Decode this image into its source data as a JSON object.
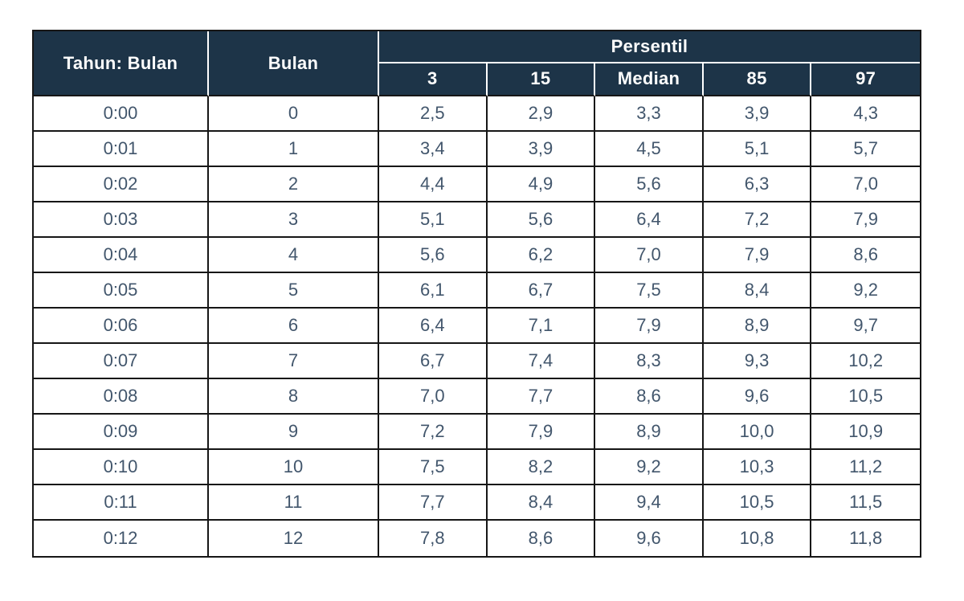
{
  "table": {
    "headers": {
      "year_month": "Tahun: Bulan",
      "month": "Bulan",
      "percentile_group": "Persentil",
      "percentiles": [
        "3",
        "15",
        "Median",
        "85",
        "97"
      ]
    },
    "rows": [
      {
        "year_month": "0:00",
        "month": "0",
        "values": [
          "2,5",
          "2,9",
          "3,3",
          "3,9",
          "4,3"
        ]
      },
      {
        "year_month": "0:01",
        "month": "1",
        "values": [
          "3,4",
          "3,9",
          "4,5",
          "5,1",
          "5,7"
        ]
      },
      {
        "year_month": "0:02",
        "month": "2",
        "values": [
          "4,4",
          "4,9",
          "5,6",
          "6,3",
          "7,0"
        ]
      },
      {
        "year_month": "0:03",
        "month": "3",
        "values": [
          "5,1",
          "5,6",
          "6,4",
          "7,2",
          "7,9"
        ]
      },
      {
        "year_month": "0:04",
        "month": "4",
        "values": [
          "5,6",
          "6,2",
          "7,0",
          "7,9",
          "8,6"
        ]
      },
      {
        "year_month": "0:05",
        "month": "5",
        "values": [
          "6,1",
          "6,7",
          "7,5",
          "8,4",
          "9,2"
        ]
      },
      {
        "year_month": "0:06",
        "month": "6",
        "values": [
          "6,4",
          "7,1",
          "7,9",
          "8,9",
          "9,7"
        ]
      },
      {
        "year_month": "0:07",
        "month": "7",
        "values": [
          "6,7",
          "7,4",
          "8,3",
          "9,3",
          "10,2"
        ]
      },
      {
        "year_month": "0:08",
        "month": "8",
        "values": [
          "7,0",
          "7,7",
          "8,6",
          "9,6",
          "10,5"
        ]
      },
      {
        "year_month": "0:09",
        "month": "9",
        "values": [
          "7,2",
          "7,9",
          "8,9",
          "10,0",
          "10,9"
        ]
      },
      {
        "year_month": "0:10",
        "month": "10",
        "values": [
          "7,5",
          "8,2",
          "9,2",
          "10,3",
          "11,2"
        ]
      },
      {
        "year_month": "0:11",
        "month": "11",
        "values": [
          "7,7",
          "8,4",
          "9,4",
          "10,5",
          "11,5"
        ]
      },
      {
        "year_month": "0:12",
        "month": "12",
        "values": [
          "7,8",
          "8,6",
          "9,6",
          "10,8",
          "11,8"
        ]
      }
    ],
    "cell_names": [
      "cell-year-month",
      "cell-month",
      "cell-p3",
      "cell-p15",
      "cell-median",
      "cell-p85",
      "cell-p97"
    ]
  },
  "chart_data": {
    "type": "table",
    "title": "Persentil",
    "columns": [
      "Tahun: Bulan",
      "Bulan",
      "3",
      "15",
      "Median",
      "85",
      "97"
    ],
    "rows": [
      [
        "0:00",
        0,
        2.5,
        2.9,
        3.3,
        3.9,
        4.3
      ],
      [
        "0:01",
        1,
        3.4,
        3.9,
        4.5,
        5.1,
        5.7
      ],
      [
        "0:02",
        2,
        4.4,
        4.9,
        5.6,
        6.3,
        7.0
      ],
      [
        "0:03",
        3,
        5.1,
        5.6,
        6.4,
        7.2,
        7.9
      ],
      [
        "0:04",
        4,
        5.6,
        6.2,
        7.0,
        7.9,
        8.6
      ],
      [
        "0:05",
        5,
        6.1,
        6.7,
        7.5,
        8.4,
        9.2
      ],
      [
        "0:06",
        6,
        6.4,
        7.1,
        7.9,
        8.9,
        9.7
      ],
      [
        "0:07",
        7,
        6.7,
        7.4,
        8.3,
        9.3,
        10.2
      ],
      [
        "0:08",
        8,
        7.0,
        7.7,
        8.6,
        9.6,
        10.5
      ],
      [
        "0:09",
        9,
        7.2,
        7.9,
        8.9,
        10.0,
        10.9
      ],
      [
        "0:10",
        10,
        7.5,
        8.2,
        9.2,
        10.3,
        11.2
      ],
      [
        "0:11",
        11,
        7.7,
        8.4,
        9.4,
        10.5,
        11.5
      ],
      [
        "0:12",
        12,
        7.8,
        8.6,
        9.6,
        10.8,
        11.8
      ]
    ]
  },
  "colors": {
    "header_bg": "#1d3448",
    "header_text": "#fdfdfd",
    "cell_text": "#42566c",
    "border": "#161616",
    "background": "#ffffff"
  }
}
